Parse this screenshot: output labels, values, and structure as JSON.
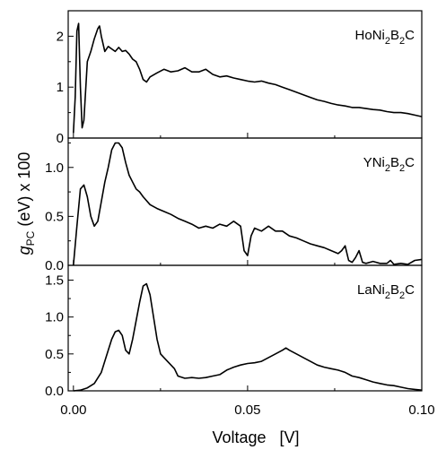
{
  "chart_data": {
    "type": "line",
    "xlabel": "Voltage   [V]",
    "ylabel_parts": {
      "pre": "g",
      "sub": "PC",
      "post": " (eV) x 100"
    },
    "x_ticks": [
      "0.00",
      "0.05",
      "0.10"
    ],
    "xlim": [
      -0.0015,
      0.1
    ],
    "panels": [
      {
        "label": {
          "a": "HoNi",
          "a_sub": "2",
          "b": "B",
          "b_sub": "2",
          "c": "C"
        },
        "ylim": [
          0,
          2.5
        ],
        "y_ticks": [
          {
            "v": 0,
            "t": "0"
          },
          {
            "v": 1,
            "t": "1"
          },
          {
            "v": 2,
            "t": "2"
          }
        ],
        "x": [
          0.0,
          0.0005,
          0.001,
          0.0015,
          0.002,
          0.0025,
          0.003,
          0.004,
          0.005,
          0.006,
          0.007,
          0.0075,
          0.008,
          0.009,
          0.01,
          0.011,
          0.012,
          0.013,
          0.014,
          0.015,
          0.016,
          0.017,
          0.018,
          0.019,
          0.02,
          0.021,
          0.022,
          0.024,
          0.026,
          0.028,
          0.03,
          0.032,
          0.034,
          0.036,
          0.038,
          0.04,
          0.042,
          0.044,
          0.046,
          0.048,
          0.05,
          0.052,
          0.054,
          0.056,
          0.058,
          0.06,
          0.062,
          0.064,
          0.066,
          0.068,
          0.07,
          0.072,
          0.074,
          0.076,
          0.078,
          0.08,
          0.082,
          0.084,
          0.086,
          0.088,
          0.09,
          0.092,
          0.094,
          0.096,
          0.098,
          0.1
        ],
        "y": [
          0.1,
          0.8,
          2.1,
          2.25,
          1.0,
          0.2,
          0.35,
          1.5,
          1.7,
          1.95,
          2.15,
          2.2,
          2.0,
          1.7,
          1.8,
          1.75,
          1.7,
          1.78,
          1.7,
          1.72,
          1.65,
          1.55,
          1.5,
          1.35,
          1.15,
          1.1,
          1.2,
          1.28,
          1.35,
          1.3,
          1.32,
          1.38,
          1.3,
          1.3,
          1.35,
          1.25,
          1.2,
          1.22,
          1.18,
          1.15,
          1.12,
          1.1,
          1.12,
          1.08,
          1.05,
          1.0,
          0.95,
          0.9,
          0.85,
          0.8,
          0.75,
          0.72,
          0.68,
          0.65,
          0.63,
          0.6,
          0.6,
          0.58,
          0.56,
          0.55,
          0.52,
          0.5,
          0.5,
          0.48,
          0.45,
          0.42
        ]
      },
      {
        "label": {
          "a": "YNi",
          "a_sub": "2",
          "b": "B",
          "b_sub": "2",
          "c": "C"
        },
        "ylim": [
          0,
          1.3
        ],
        "y_ticks": [
          {
            "v": 0,
            "t": "0.0"
          },
          {
            "v": 0.5,
            "t": "0.5"
          },
          {
            "v": 1.0,
            "t": "1.0"
          }
        ],
        "x": [
          0.0,
          0.001,
          0.002,
          0.003,
          0.004,
          0.005,
          0.006,
          0.007,
          0.008,
          0.009,
          0.01,
          0.011,
          0.012,
          0.013,
          0.014,
          0.015,
          0.016,
          0.017,
          0.018,
          0.019,
          0.02,
          0.022,
          0.024,
          0.026,
          0.028,
          0.03,
          0.032,
          0.034,
          0.036,
          0.038,
          0.04,
          0.042,
          0.044,
          0.046,
          0.048,
          0.049,
          0.05,
          0.051,
          0.052,
          0.054,
          0.056,
          0.058,
          0.06,
          0.062,
          0.064,
          0.066,
          0.068,
          0.07,
          0.072,
          0.074,
          0.076,
          0.077,
          0.078,
          0.079,
          0.08,
          0.081,
          0.082,
          0.083,
          0.084,
          0.086,
          0.088,
          0.09,
          0.091,
          0.092,
          0.094,
          0.096,
          0.098,
          0.1
        ],
        "y": [
          0.0,
          0.4,
          0.78,
          0.82,
          0.7,
          0.5,
          0.4,
          0.45,
          0.65,
          0.85,
          1.0,
          1.18,
          1.25,
          1.25,
          1.2,
          1.05,
          0.92,
          0.85,
          0.78,
          0.75,
          0.7,
          0.62,
          0.58,
          0.55,
          0.52,
          0.48,
          0.45,
          0.42,
          0.38,
          0.4,
          0.38,
          0.42,
          0.4,
          0.45,
          0.4,
          0.15,
          0.1,
          0.3,
          0.38,
          0.35,
          0.4,
          0.35,
          0.35,
          0.3,
          0.28,
          0.25,
          0.22,
          0.2,
          0.18,
          0.15,
          0.12,
          0.15,
          0.2,
          0.05,
          0.03,
          0.08,
          0.15,
          0.03,
          0.02,
          0.04,
          0.02,
          0.02,
          0.05,
          0.01,
          0.02,
          0.01,
          0.05,
          0.06
        ]
      },
      {
        "label": {
          "a": "LaNi",
          "a_sub": "2",
          "b": "B",
          "b_sub": "2",
          "c": "C"
        },
        "ylim": [
          0,
          1.7
        ],
        "y_ticks": [
          {
            "v": 0,
            "t": "0.0"
          },
          {
            "v": 0.5,
            "t": "0.5"
          },
          {
            "v": 1.0,
            "t": "1.0"
          },
          {
            "v": 1.5,
            "t": "1.5"
          }
        ],
        "x": [
          0.0,
          0.002,
          0.004,
          0.006,
          0.008,
          0.01,
          0.011,
          0.012,
          0.013,
          0.014,
          0.015,
          0.016,
          0.017,
          0.018,
          0.019,
          0.02,
          0.021,
          0.022,
          0.023,
          0.024,
          0.025,
          0.026,
          0.027,
          0.028,
          0.029,
          0.03,
          0.032,
          0.034,
          0.036,
          0.038,
          0.04,
          0.042,
          0.044,
          0.046,
          0.048,
          0.05,
          0.052,
          0.054,
          0.056,
          0.058,
          0.06,
          0.061,
          0.062,
          0.064,
          0.066,
          0.068,
          0.07,
          0.072,
          0.074,
          0.076,
          0.078,
          0.08,
          0.082,
          0.084,
          0.086,
          0.088,
          0.09,
          0.092,
          0.094,
          0.096,
          0.098,
          0.1
        ],
        "y": [
          0.0,
          0.01,
          0.04,
          0.1,
          0.25,
          0.55,
          0.7,
          0.8,
          0.82,
          0.75,
          0.55,
          0.5,
          0.7,
          0.95,
          1.2,
          1.42,
          1.45,
          1.3,
          1.0,
          0.7,
          0.5,
          0.45,
          0.4,
          0.35,
          0.3,
          0.2,
          0.17,
          0.18,
          0.17,
          0.18,
          0.2,
          0.22,
          0.28,
          0.32,
          0.35,
          0.37,
          0.38,
          0.4,
          0.45,
          0.5,
          0.55,
          0.58,
          0.55,
          0.5,
          0.45,
          0.4,
          0.35,
          0.32,
          0.3,
          0.28,
          0.25,
          0.2,
          0.18,
          0.15,
          0.12,
          0.1,
          0.08,
          0.07,
          0.05,
          0.03,
          0.02,
          0.01
        ]
      }
    ]
  }
}
